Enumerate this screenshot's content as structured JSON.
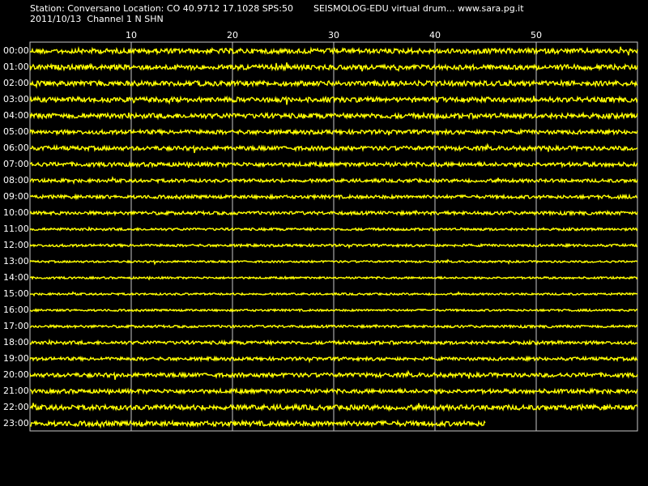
{
  "header": {
    "station_line": "Station: Conversano Location: CO 40.9712 17.1028 SPS:50",
    "app_line": "SEISMOLOG-EDU virtual drum... www.sara.pg.it",
    "date_line": "2011/10/13  Channel 1 N SHN"
  },
  "colors": {
    "background": "#000000",
    "trace": "#ffff00",
    "grid": "#c8c8c8",
    "text": "#ffffff"
  },
  "chart_data": {
    "type": "line",
    "title": "",
    "minute_ticks": [
      "10",
      "20",
      "30",
      "40",
      "50"
    ],
    "xlim": [
      0,
      60
    ],
    "rows": [
      {
        "label": "00:00",
        "amplitude": 3,
        "end_minute": 60
      },
      {
        "label": "01:00",
        "amplitude": 3,
        "end_minute": 60
      },
      {
        "label": "02:00",
        "amplitude": 3,
        "end_minute": 60
      },
      {
        "label": "03:00",
        "amplitude": 3,
        "end_minute": 60
      },
      {
        "label": "04:00",
        "amplitude": 3,
        "end_minute": 60
      },
      {
        "label": "05:00",
        "amplitude": 2.5,
        "end_minute": 60
      },
      {
        "label": "06:00",
        "amplitude": 2.5,
        "end_minute": 60
      },
      {
        "label": "07:00",
        "amplitude": 2.5,
        "end_minute": 60
      },
      {
        "label": "08:00",
        "amplitude": 2,
        "end_minute": 60
      },
      {
        "label": "09:00",
        "amplitude": 2,
        "end_minute": 60
      },
      {
        "label": "10:00",
        "amplitude": 2,
        "end_minute": 60
      },
      {
        "label": "11:00",
        "amplitude": 1.5,
        "end_minute": 60
      },
      {
        "label": "12:00",
        "amplitude": 1.5,
        "end_minute": 60
      },
      {
        "label": "13:00",
        "amplitude": 1.2,
        "end_minute": 60
      },
      {
        "label": "14:00",
        "amplitude": 1.2,
        "end_minute": 60
      },
      {
        "label": "15:00",
        "amplitude": 1.2,
        "end_minute": 60
      },
      {
        "label": "16:00",
        "amplitude": 1.2,
        "end_minute": 60
      },
      {
        "label": "17:00",
        "amplitude": 1.5,
        "end_minute": 60
      },
      {
        "label": "18:00",
        "amplitude": 2,
        "end_minute": 60
      },
      {
        "label": "19:00",
        "amplitude": 2,
        "end_minute": 60
      },
      {
        "label": "20:00",
        "amplitude": 2.5,
        "end_minute": 60
      },
      {
        "label": "21:00",
        "amplitude": 2.5,
        "end_minute": 60
      },
      {
        "label": "22:00",
        "amplitude": 3,
        "end_minute": 60
      },
      {
        "label": "23:00",
        "amplitude": 3,
        "end_minute": 45
      }
    ]
  }
}
